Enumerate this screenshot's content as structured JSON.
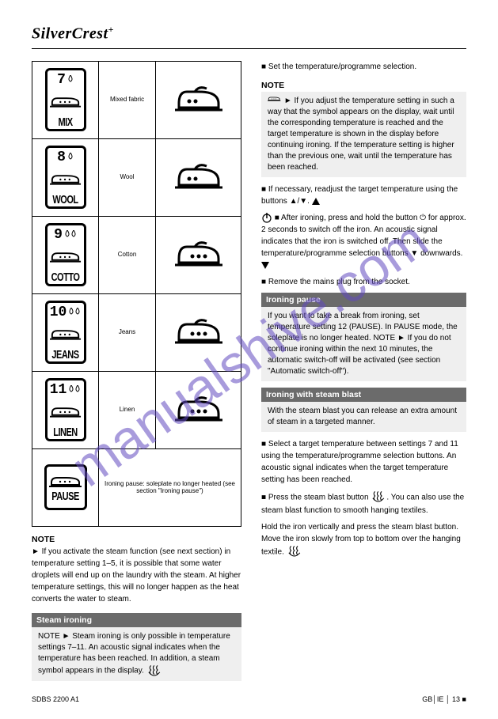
{
  "brand": "SilverCrest",
  "brand_suffix": "+",
  "watermark": "manualshive.com",
  "footer_left": "SDBS 2200 A1",
  "footer_right": "GB│IE │ 13 ■",
  "rows": [
    {
      "num": "7",
      "label": "MIX",
      "dots": 2,
      "drops": 1,
      "desc": "Mixed fabric"
    },
    {
      "num": "8",
      "label": "WOOL",
      "dots": 2,
      "drops": 1,
      "desc": "Wool"
    },
    {
      "num": "9",
      "label": "COTTO",
      "dots": 3,
      "drops": 2,
      "desc": "Cotton"
    },
    {
      "num": "10",
      "label": "JEANS",
      "dots": 3,
      "drops": 2,
      "desc": "Jeans"
    },
    {
      "num": "11",
      "label": "LINEN",
      "dots": 3,
      "drops": 2,
      "desc": "Linen"
    }
  ],
  "pause_label": "PAUSE",
  "pause_desc": "Ironing pause: soleplate no longer heated (see section \"Ironing pause\")",
  "left_note_head": "NOTE",
  "left_note_body": "► If you activate the steam function (see next section) in temperature setting 1–5, it is possible that some water droplets will end up on the laundry with the steam. At higher temperature settings, this will no longer happen as the heat converts the water to steam.",
  "left_bar": "Steam ironing",
  "left_box": "NOTE\n► Steam ironing is only possible in temperature settings 7–11. An acoustic signal indicates when the temperature has been reached. In addition, a steam symbol appears in the display.",
  "right_sections": {
    "note1_head": "NOTE",
    "note1_body": "► If you adjust the temperature setting in such a way that the symbol appears on the display, wait until the corresponding temperature is reached and the target temperature is shown in the display before continuing ironing. If the temperature setting is higher than the previous one, wait until the temperature has been reached.",
    "para1": "■ If necessary, readjust the target temperature using the buttons ▲/▼.",
    "para2": "■ After ironing, press and hold the button ⏻ for approx. 2 seconds to switch off the iron. An acoustic signal indicates that the iron is switched off. Then slide the temperature/programme selection buttons ▼ downwards.",
    "para3": "■ Remove the mains plug from the socket.",
    "bar2": "Ironing pause",
    "box2": "If you want to take a break from ironing, set temperature setting 12 (PAUSE). In PAUSE mode, the soleplate is no longer heated.\nNOTE\n► If you do not continue ironing within the next 10 minutes, the automatic switch-off will be activated (see section \"Automatic switch-off\").",
    "bar3": "Ironing with steam blast",
    "box3": "With the steam blast you can release an extra amount of steam in a targeted manner.",
    "para4": "■ Select a target temperature between settings 7 and 11 using the temperature/programme selection buttons. An acoustic signal indicates when the target temperature setting has been reached.",
    "para5a": "■ Press the steam blast button",
    "para5b": "You can also use the steam blast function to smooth hanging textiles.",
    "para6": "Hold the iron vertically and press the steam blast button. Move the iron slowly from top to bottom over the hanging textile."
  }
}
